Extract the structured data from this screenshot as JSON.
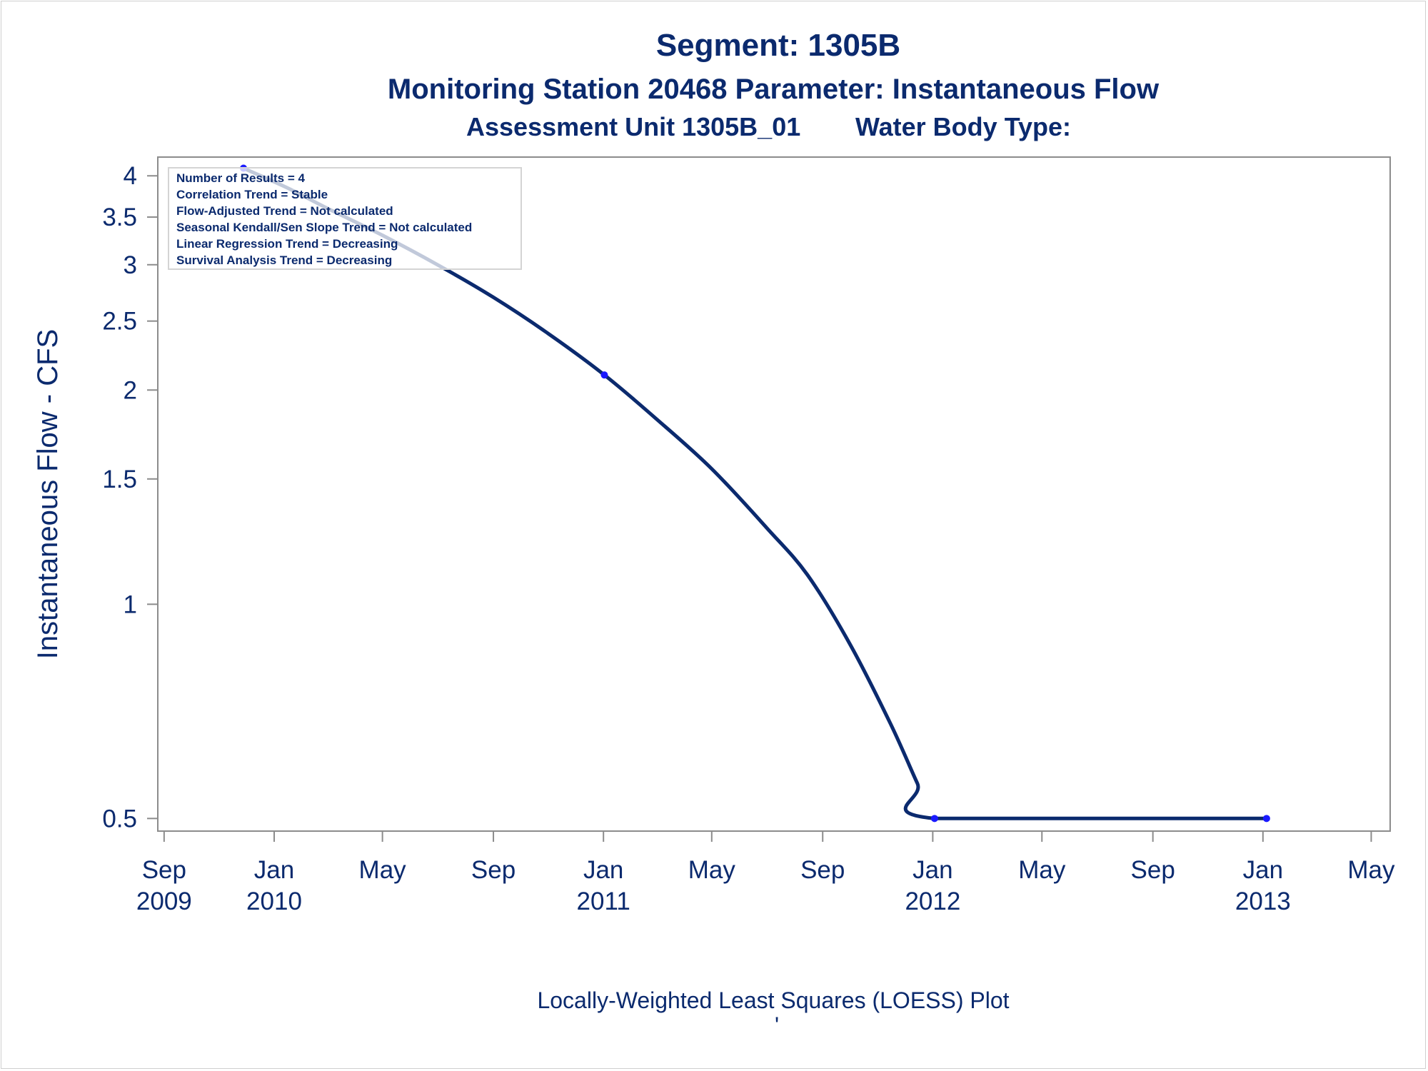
{
  "titles": {
    "line1": "Segment: 1305B",
    "line2": "Monitoring Station 20468 Parameter: Instantaneous Flow",
    "line3a": "Assessment Unit 1305B_01",
    "line3b": "Water Body Type:"
  },
  "footnote": {
    "line1": "Locally-Weighted Least Squares (LOESS) Plot",
    "line2": "'"
  },
  "inset": [
    "Number of Results = 4",
    "Correlation Trend = Stable",
    "Flow-Adjusted Trend = Not calculated",
    "Seasonal Kendall/Sen Slope Trend = Not calculated",
    "Linear Regression Trend = Decreasing",
    "Survival Analysis Trend = Decreasing"
  ],
  "colors": {
    "text": "#0b2a6e",
    "line": "#0b2a6e",
    "marker": "#1a1aff",
    "axis": "#8c8c8c"
  },
  "chart_data": {
    "type": "line",
    "ylabel": "Instantaneous Flow - CFS",
    "xlabel": "",
    "y_scale": "log",
    "ylim": [
      0.48,
      4.25
    ],
    "xlim": [
      "2009-08-25",
      "2013-05-22"
    ],
    "y_ticks": [
      {
        "value": 0.5,
        "label": "0.5"
      },
      {
        "value": 1,
        "label": "1"
      },
      {
        "value": 1.5,
        "label": "1.5"
      },
      {
        "value": 2,
        "label": "2"
      },
      {
        "value": 2.5,
        "label": "2.5"
      },
      {
        "value": 3,
        "label": "3"
      },
      {
        "value": 3.5,
        "label": "3.5"
      },
      {
        "value": 4,
        "label": "4"
      }
    ],
    "x_ticks": [
      {
        "date": "2009-09-01",
        "label": [
          "Sep",
          "2009"
        ]
      },
      {
        "date": "2010-01-01",
        "label": [
          "Jan",
          "2010"
        ]
      },
      {
        "date": "2010-05-01",
        "label": [
          "May"
        ]
      },
      {
        "date": "2010-09-01",
        "label": [
          "Sep"
        ]
      },
      {
        "date": "2011-01-01",
        "label": [
          "Jan",
          "2011"
        ]
      },
      {
        "date": "2011-05-01",
        "label": [
          "May"
        ]
      },
      {
        "date": "2011-09-01",
        "label": [
          "Sep"
        ]
      },
      {
        "date": "2012-01-01",
        "label": [
          "Jan",
          "2012"
        ]
      },
      {
        "date": "2012-05-01",
        "label": [
          "May"
        ]
      },
      {
        "date": "2012-09-01",
        "label": [
          "Sep"
        ]
      },
      {
        "date": "2013-01-01",
        "label": [
          "Jan",
          "2013"
        ]
      },
      {
        "date": "2013-05-01",
        "label": [
          "May"
        ]
      }
    ],
    "observations": [
      {
        "date": "2009-11-28",
        "value": 4.1
      },
      {
        "date": "2011-01-02",
        "value": 2.1
      },
      {
        "date": "2012-01-03",
        "value": 0.5
      },
      {
        "date": "2013-01-05",
        "value": 0.5
      }
    ],
    "loess_curve": [
      {
        "date": "2009-11-28",
        "value": 4.1
      },
      {
        "date": "2010-01-15",
        "value": 3.85
      },
      {
        "date": "2010-03-01",
        "value": 3.6
      },
      {
        "date": "2010-05-01",
        "value": 3.3
      },
      {
        "date": "2010-07-01",
        "value": 3.0
      },
      {
        "date": "2010-09-01",
        "value": 2.7
      },
      {
        "date": "2010-11-01",
        "value": 2.4
      },
      {
        "date": "2011-01-02",
        "value": 2.1
      },
      {
        "date": "2011-03-01",
        "value": 1.82
      },
      {
        "date": "2011-05-01",
        "value": 1.55
      },
      {
        "date": "2011-07-01",
        "value": 1.28
      },
      {
        "date": "2011-08-15",
        "value": 1.1
      },
      {
        "date": "2011-10-01",
        "value": 0.88
      },
      {
        "date": "2011-11-15",
        "value": 0.68
      },
      {
        "date": "2011-12-15",
        "value": 0.56
      },
      {
        "date": "2012-01-03",
        "value": 0.5
      },
      {
        "date": "2013-01-05",
        "value": 0.5
      }
    ]
  }
}
